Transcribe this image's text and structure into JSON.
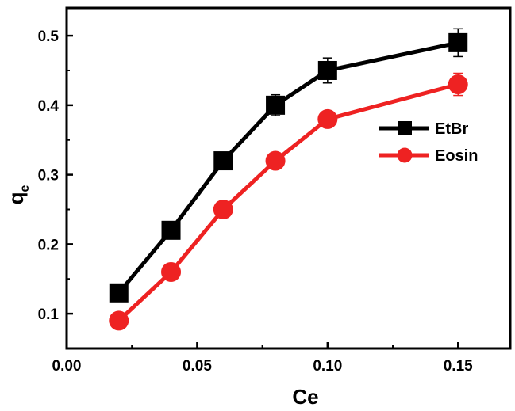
{
  "chart_data": {
    "type": "line",
    "title": "",
    "xlabel": "Ce",
    "ylabel": "q",
    "ylabel_subscript": "e",
    "xlim": [
      0.0,
      0.17
    ],
    "ylim": [
      0.05,
      0.54
    ],
    "xticks": [
      0.0,
      0.05,
      0.1,
      0.15
    ],
    "xtick_labels": [
      "0.00",
      "0.05",
      "0.10",
      "0.15"
    ],
    "yticks": [
      0.1,
      0.2,
      0.3,
      0.4,
      0.5
    ],
    "ytick_labels": [
      "0.1",
      "0.2",
      "0.3",
      "0.4",
      "0.5"
    ],
    "grid": false,
    "legend_position": "right",
    "x": [
      0.02,
      0.04,
      0.06,
      0.08,
      0.1,
      0.15
    ],
    "series": [
      {
        "name": "EtBr",
        "marker": "square",
        "color": "#000000",
        "values": [
          0.13,
          0.22,
          0.32,
          0.4,
          0.45,
          0.49
        ],
        "errors": [
          0,
          0,
          0,
          0.015,
          0.018,
          0.02
        ]
      },
      {
        "name": "Eosin",
        "marker": "circle",
        "color": "#ee2222",
        "values": [
          0.09,
          0.16,
          0.25,
          0.32,
          0.38,
          0.43
        ],
        "errors": [
          0,
          0,
          0,
          0,
          0,
          0.016
        ]
      }
    ]
  }
}
